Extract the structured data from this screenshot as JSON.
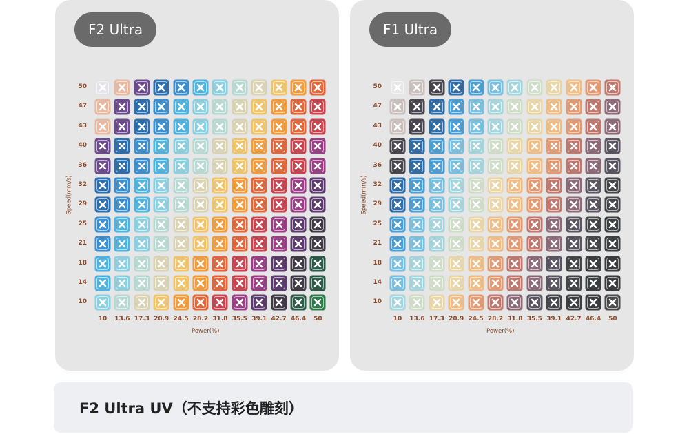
{
  "panels": [
    {
      "title": "F2 Ultra",
      "y_ticks": [
        "50",
        "47",
        "43",
        "40",
        "36",
        "32",
        "29",
        "25",
        "21",
        "18",
        "14",
        "10"
      ],
      "x_ticks": [
        "10",
        "13.6",
        "17.3",
        "20.9",
        "24.5",
        "28.2",
        "31.8",
        "35.5",
        "39.1",
        "42.7",
        "46.4",
        "50"
      ],
      "y_axis_label": "Speed(mm/s)",
      "x_axis_label": "Power(%)"
    },
    {
      "title": "F1 Ultra",
      "y_ticks": [
        "50",
        "47",
        "43",
        "40",
        "36",
        "32",
        "29",
        "25",
        "21",
        "18",
        "14",
        "10"
      ],
      "x_ticks": [
        "10",
        "13.6",
        "17.3",
        "20.9",
        "24.5",
        "28.2",
        "31.8",
        "35.5",
        "39.1",
        "42.7",
        "46.4",
        "50"
      ],
      "y_axis_label": "Speed(mm/s)",
      "x_axis_label": "Power(%)"
    }
  ],
  "footer": {
    "text": "F2 Ultra UV（不支持彩色雕刻）"
  }
}
